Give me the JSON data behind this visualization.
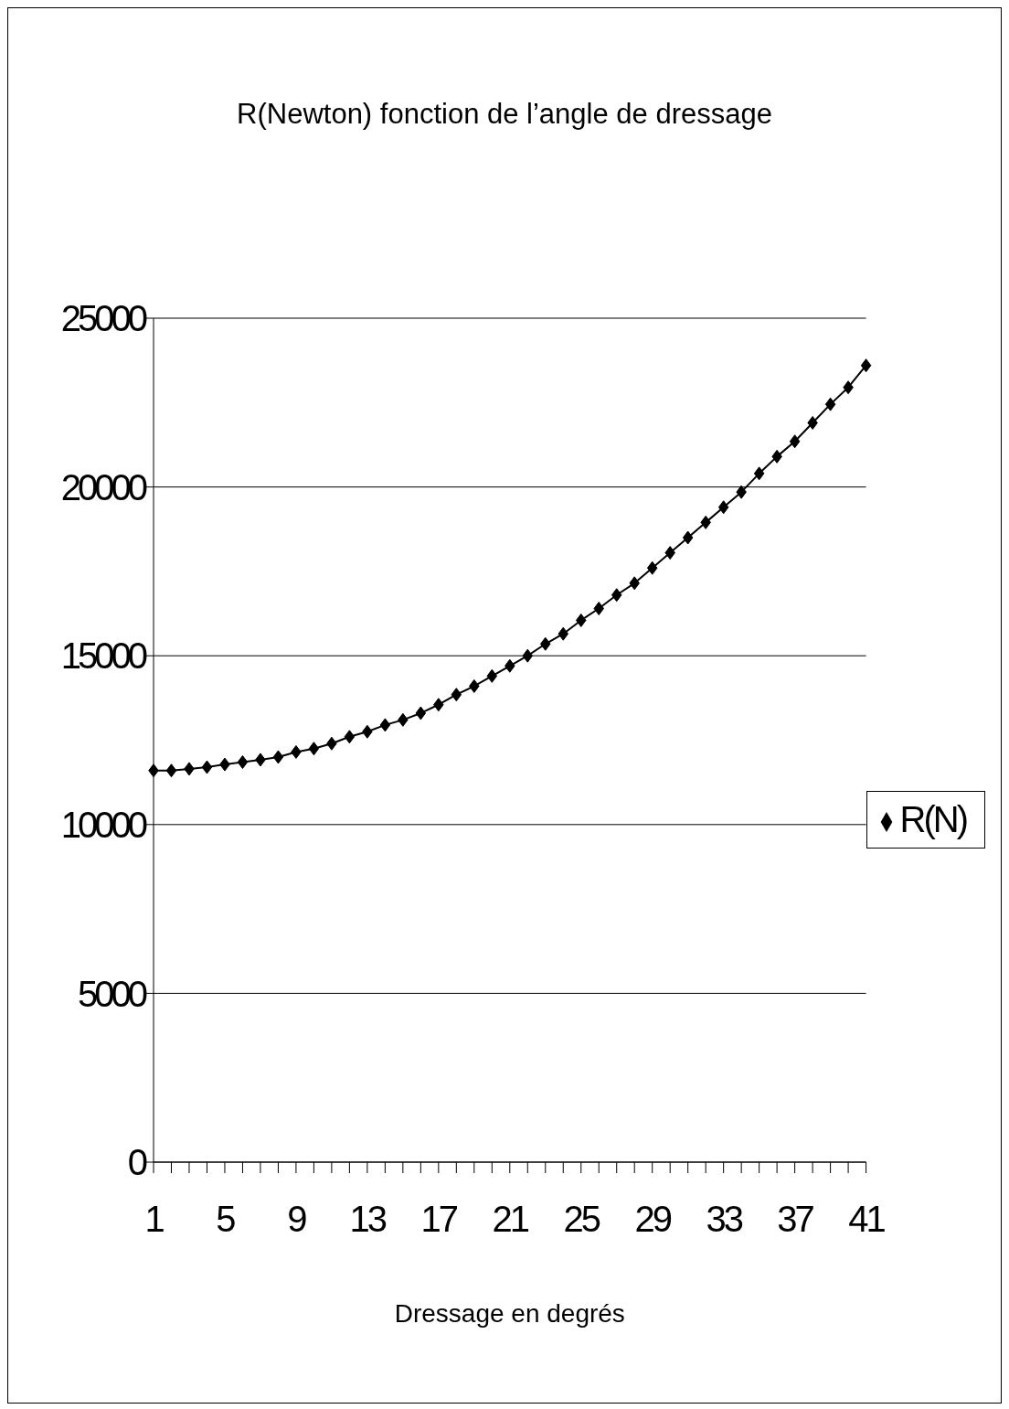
{
  "chart_data": {
    "type": "line",
    "title": "R(Newton) fonction de l’angle de dressage",
    "xlabel": "Dressage en degrés",
    "categories": [
      "1",
      null,
      null,
      null,
      "5",
      null,
      null,
      null,
      "9",
      null,
      null,
      null,
      "13",
      null,
      null,
      null,
      "17",
      null,
      null,
      null,
      "21",
      null,
      null,
      null,
      "25",
      null,
      null,
      null,
      "29",
      null,
      null,
      null,
      "33",
      null,
      null,
      null,
      "37",
      null,
      null,
      null,
      "41"
    ],
    "series": [
      {
        "name": "R(N)",
        "color": "#000000",
        "values": [
          11600,
          11600,
          11650,
          11700,
          11780,
          11850,
          11920,
          12000,
          12150,
          12250,
          12400,
          12600,
          12750,
          12950,
          13100,
          13300,
          13550,
          13850,
          14100,
          14400,
          14700,
          15000,
          15350,
          15650,
          16050,
          16400,
          16800,
          17150,
          17600,
          18050,
          18500,
          18950,
          19400,
          19850,
          20400,
          20900,
          21350,
          21900,
          22450,
          22950,
          23600
        ]
      }
    ],
    "ylim": [
      0,
      25000
    ],
    "yticks": [
      0,
      5000,
      10000,
      15000,
      20000,
      25000
    ],
    "grid": "y",
    "legend": "right",
    "marker": "diamond",
    "line_style": "solid"
  }
}
